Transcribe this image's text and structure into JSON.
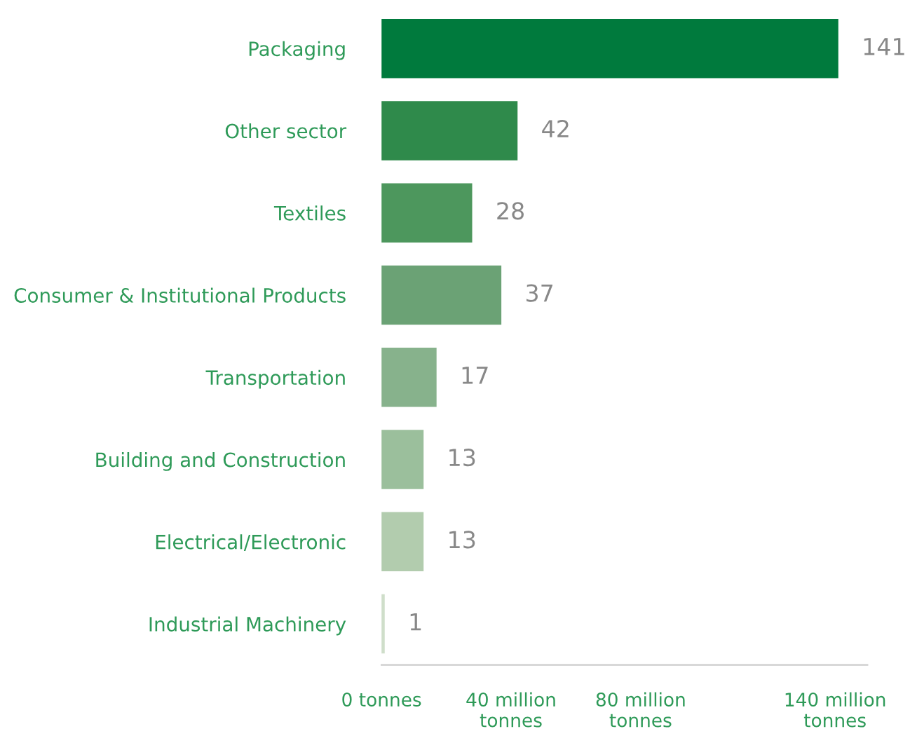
{
  "chart_data": {
    "type": "bar",
    "orientation": "horizontal",
    "categories": [
      "Packaging",
      "Other sector",
      "Textiles",
      "Consumer & Institutional Products",
      "Transportation",
      "Building and Construction",
      "Electrical/Electronic",
      "Industrial Machinery"
    ],
    "values": [
      141,
      42,
      28,
      37,
      17,
      13,
      13,
      1
    ],
    "colors": [
      "#007a3d",
      "#2f8a4b",
      "#4d975d",
      "#6ba275",
      "#87b28c",
      "#9bbf9c",
      "#b2ccae",
      "#cfdeca"
    ],
    "data_labels": true,
    "xlim": [
      0,
      150
    ],
    "xticks": [
      {
        "value": 0,
        "label": "0 tonnes"
      },
      {
        "value": 40,
        "label": "40 million\ntonnes"
      },
      {
        "value": 80,
        "label": "80 million\ntonnes"
      },
      {
        "value": 140,
        "label": "140 million\ntonnes"
      }
    ],
    "grid": false,
    "legend": false
  }
}
